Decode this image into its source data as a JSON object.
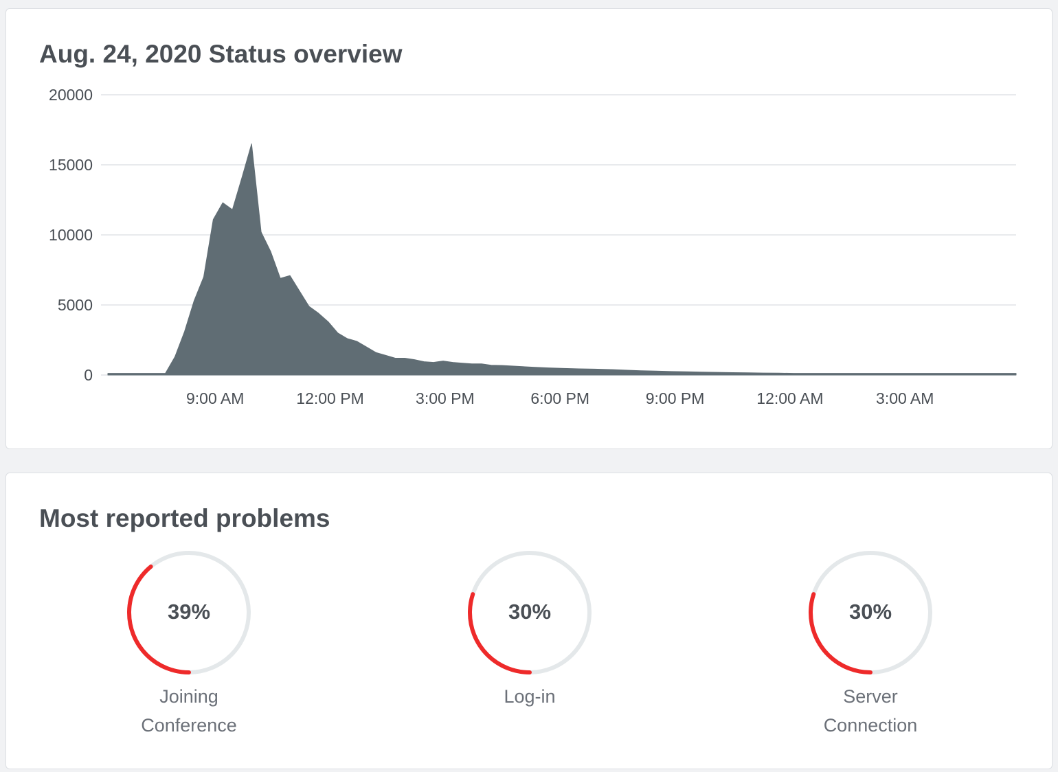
{
  "status_card": {
    "title": "Aug. 24, 2020 Status overview"
  },
  "chart_data": {
    "type": "area",
    "title": "Aug. 24, 2020 Status overview",
    "xlabel": "",
    "ylabel": "",
    "ylim": [
      0,
      20000
    ],
    "y_ticks": [
      20000,
      15000,
      10000,
      5000,
      0
    ],
    "x_ticks": [
      {
        "label": "9:00 AM",
        "hour": 9
      },
      {
        "label": "12:00 PM",
        "hour": 12
      },
      {
        "label": "3:00 PM",
        "hour": 15
      },
      {
        "label": "6:00 PM",
        "hour": 18
      },
      {
        "label": "9:00 PM",
        "hour": 21
      },
      {
        "label": "12:00 AM",
        "hour": 24
      },
      {
        "label": "3:00 AM",
        "hour": 27
      }
    ],
    "xlim": [
      6.2,
      29.9
    ],
    "grid": true,
    "color": "#606d74",
    "x": [
      6.2,
      6.5,
      7.0,
      7.5,
      7.7,
      7.95,
      8.2,
      8.45,
      8.7,
      8.95,
      9.2,
      9.45,
      9.7,
      9.95,
      10.2,
      10.45,
      10.7,
      10.95,
      11.2,
      11.45,
      11.7,
      11.95,
      12.2,
      12.45,
      12.7,
      12.95,
      13.2,
      13.45,
      13.7,
      13.95,
      14.2,
      14.45,
      14.7,
      14.95,
      15.2,
      15.45,
      15.7,
      15.95,
      16.2,
      16.5,
      16.9,
      17.3,
      17.7,
      18.1,
      18.5,
      18.9,
      19.3,
      19.7,
      20.1,
      20.5,
      20.9,
      21.3,
      21.7,
      22.1,
      22.5,
      22.9,
      23.3,
      23.7,
      24.1,
      24.5,
      24.9,
      25.3,
      25.7,
      26.1,
      26.5,
      26.9,
      27.3,
      27.7,
      28.1,
      28.5,
      28.9,
      29.3,
      29.6,
      29.9
    ],
    "y": [
      0,
      0,
      0,
      0,
      0,
      1300,
      3100,
      5300,
      7000,
      11100,
      12300,
      11800,
      14100,
      16500,
      10200,
      8800,
      6900,
      7100,
      6000,
      4900,
      4400,
      3800,
      3000,
      2600,
      2400,
      2000,
      1600,
      1400,
      1200,
      1200,
      1100,
      950,
      900,
      1000,
      900,
      850,
      800,
      800,
      700,
      680,
      620,
      560,
      510,
      470,
      440,
      420,
      390,
      350,
      310,
      280,
      250,
      230,
      210,
      190,
      170,
      160,
      140,
      130,
      120,
      110,
      100,
      95,
      90,
      85,
      80,
      75,
      70,
      70,
      65,
      65,
      60,
      60,
      60,
      0
    ]
  },
  "problems_card": {
    "title": "Most reported problems",
    "items": [
      {
        "value_label": "39%",
        "fraction": 0.39,
        "label_line1": "Joining",
        "label_line2": "Conference"
      },
      {
        "value_label": "30%",
        "fraction": 0.3,
        "label_line1": "Log-in",
        "label_line2": ""
      },
      {
        "value_label": "30%",
        "fraction": 0.3,
        "label_line1": "Server",
        "label_line2": "Connection"
      }
    ],
    "ring_color": "#ee2a2a",
    "track_color": "#e4e8ea"
  }
}
